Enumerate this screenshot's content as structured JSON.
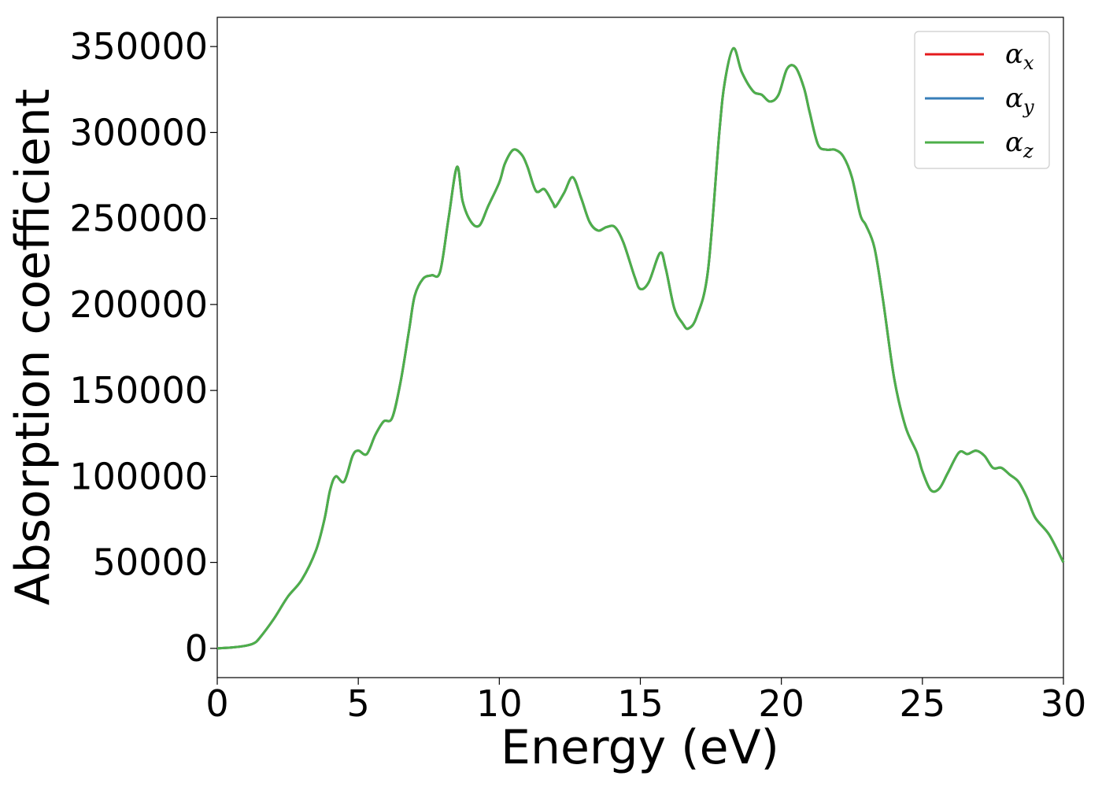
{
  "chart_data": {
    "type": "line",
    "title": "",
    "xlabel": "Energy (eV)",
    "ylabel": "Absorption coefficient",
    "xlim": [
      0,
      30
    ],
    "ylim": [
      -17000,
      367000
    ],
    "xticks": [
      0,
      5,
      10,
      15,
      20,
      25,
      30
    ],
    "xtick_labels": [
      "0",
      "5",
      "10",
      "15",
      "20",
      "25",
      "30"
    ],
    "yticks": [
      0,
      50000,
      100000,
      150000,
      200000,
      250000,
      300000,
      350000
    ],
    "ytick_labels": [
      "0",
      "50000",
      "100000",
      "150000",
      "200000",
      "250000",
      "300000",
      "350000"
    ],
    "grid": false,
    "legend_position": "top-right",
    "x": [
      0,
      0.5,
      1.0,
      1.3,
      1.5,
      2.0,
      2.5,
      3.0,
      3.5,
      3.8,
      4.0,
      4.2,
      4.5,
      4.8,
      5.0,
      5.3,
      5.6,
      5.9,
      6.2,
      6.5,
      6.8,
      7.0,
      7.3,
      7.6,
      7.9,
      8.2,
      8.5,
      8.7,
      9.0,
      9.3,
      9.6,
      10.0,
      10.2,
      10.5,
      10.8,
      11.0,
      11.3,
      11.6,
      11.9,
      12.0,
      12.3,
      12.6,
      12.9,
      13.2,
      13.5,
      13.8,
      14.1,
      14.4,
      14.8,
      15.0,
      15.3,
      15.7,
      15.9,
      16.2,
      16.5,
      16.7,
      17.0,
      17.4,
      17.8,
      18.0,
      18.3,
      18.6,
      19.0,
      19.3,
      19.6,
      19.9,
      20.2,
      20.5,
      20.8,
      21.0,
      21.3,
      21.6,
      21.9,
      22.2,
      22.5,
      22.8,
      23.0,
      23.3,
      23.6,
      24.0,
      24.4,
      24.8,
      25.0,
      25.3,
      25.6,
      25.9,
      26.3,
      26.6,
      26.9,
      27.2,
      27.5,
      27.8,
      28.1,
      28.4,
      28.7,
      29.0,
      29.5,
      30.0
    ],
    "series": [
      {
        "name": "α_x",
        "color": "#e41a1c",
        "values": [
          0,
          500,
          1500,
          3000,
          6000,
          17000,
          30000,
          40000,
          57000,
          75000,
          92000,
          100000,
          97000,
          112000,
          115000,
          113000,
          124000,
          132000,
          134000,
          155000,
          185000,
          205000,
          215000,
          217000,
          219000,
          250000,
          280000,
          260000,
          248000,
          246000,
          257000,
          271000,
          282000,
          290000,
          287000,
          280000,
          266000,
          267000,
          259000,
          257000,
          265000,
          274000,
          262000,
          248000,
          243000,
          245000,
          245000,
          236000,
          216000,
          209000,
          213000,
          230000,
          221000,
          198000,
          189000,
          186000,
          193000,
          220000,
          300000,
          330000,
          349000,
          335000,
          324000,
          322000,
          318000,
          322000,
          337000,
          338000,
          326000,
          312000,
          293000,
          290000,
          290000,
          286000,
          274000,
          252000,
          246000,
          233000,
          203000,
          157000,
          129000,
          114000,
          103000,
          92000,
          93000,
          102000,
          114000,
          113000,
          115000,
          112000,
          105000,
          105000,
          101000,
          97000,
          88000,
          76000,
          66000,
          50000
        ]
      },
      {
        "name": "α_y",
        "color": "#377eb8",
        "values": [
          0,
          500,
          1500,
          3000,
          6000,
          17000,
          30000,
          40000,
          57000,
          75000,
          92000,
          100000,
          97000,
          112000,
          115000,
          113000,
          124000,
          132000,
          134000,
          155000,
          185000,
          205000,
          215000,
          217000,
          219000,
          250000,
          280000,
          260000,
          248000,
          246000,
          257000,
          271000,
          282000,
          290000,
          287000,
          280000,
          266000,
          267000,
          259000,
          257000,
          265000,
          274000,
          262000,
          248000,
          243000,
          245000,
          245000,
          236000,
          216000,
          209000,
          213000,
          230000,
          221000,
          198000,
          189000,
          186000,
          193000,
          220000,
          300000,
          330000,
          349000,
          335000,
          324000,
          322000,
          318000,
          322000,
          337000,
          338000,
          326000,
          312000,
          293000,
          290000,
          290000,
          286000,
          274000,
          252000,
          246000,
          233000,
          203000,
          157000,
          129000,
          114000,
          103000,
          92000,
          93000,
          102000,
          114000,
          113000,
          115000,
          112000,
          105000,
          105000,
          101000,
          97000,
          88000,
          76000,
          66000,
          50000
        ]
      },
      {
        "name": "α_z",
        "color": "#4daf4a",
        "values": [
          0,
          500,
          1500,
          3000,
          6000,
          17000,
          30000,
          40000,
          57000,
          75000,
          92000,
          100000,
          97000,
          112000,
          115000,
          113000,
          124000,
          132000,
          134000,
          155000,
          185000,
          205000,
          215000,
          217000,
          219000,
          250000,
          280000,
          260000,
          248000,
          246000,
          257000,
          271000,
          282000,
          290000,
          287000,
          280000,
          266000,
          267000,
          259000,
          257000,
          265000,
          274000,
          262000,
          248000,
          243000,
          245000,
          245000,
          236000,
          216000,
          209000,
          213000,
          230000,
          221000,
          198000,
          189000,
          186000,
          193000,
          220000,
          300000,
          330000,
          349000,
          335000,
          324000,
          322000,
          318000,
          322000,
          337000,
          338000,
          326000,
          312000,
          293000,
          290000,
          290000,
          286000,
          274000,
          252000,
          246000,
          233000,
          203000,
          157000,
          129000,
          114000,
          103000,
          92000,
          93000,
          102000,
          114000,
          113000,
          115000,
          112000,
          105000,
          105000,
          101000,
          97000,
          88000,
          76000,
          66000,
          50000
        ]
      }
    ],
    "legend": [
      {
        "symbol": "α",
        "subscript": "x",
        "color": "#e41a1c"
      },
      {
        "symbol": "α",
        "subscript": "y",
        "color": "#377eb8"
      },
      {
        "symbol": "α",
        "subscript": "z",
        "color": "#4daf4a"
      }
    ]
  }
}
